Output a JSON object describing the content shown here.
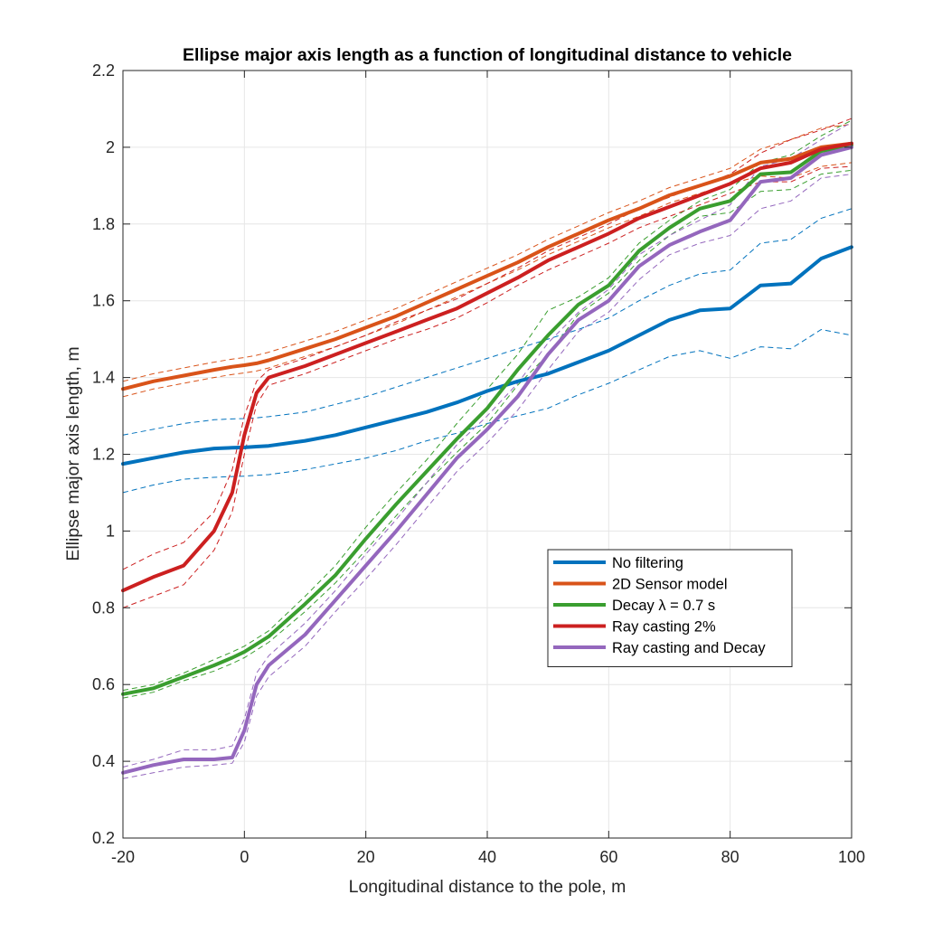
{
  "chart_data": {
    "type": "line",
    "title": "Ellipse major axis length as a function of longitudinal distance to vehicle",
    "xlabel": "Longitudinal distance to the pole, m",
    "ylabel": "Ellipse major axis length, m",
    "xlim": [
      -20,
      100
    ],
    "ylim": [
      0.2,
      2.2
    ],
    "xticks": [
      -20,
      0,
      20,
      40,
      60,
      80,
      100
    ],
    "yticks": [
      0.2,
      0.4,
      0.6,
      0.8,
      1.0,
      1.2,
      1.4,
      1.6,
      1.8,
      2.0,
      2.2
    ],
    "xtick_labels": [
      "-20",
      "0",
      "20",
      "40",
      "60",
      "80",
      "100"
    ],
    "ytick_labels": [
      "0.2",
      "0.4",
      "0.6",
      "0.8",
      "1",
      "1.2",
      "1.4",
      "1.6",
      "1.8",
      "2",
      "2.2"
    ],
    "grid": true,
    "legend_position": "lower-right inside",
    "x": [
      -20,
      -15,
      -10,
      -5,
      -2,
      0,
      2,
      4,
      10,
      15,
      20,
      25,
      30,
      35,
      40,
      45,
      50,
      55,
      60,
      65,
      70,
      75,
      80,
      85,
      90,
      95,
      100
    ],
    "series": [
      {
        "name": "No filtering",
        "color": "#0072BD",
        "values": [
          1.175,
          1.19,
          1.205,
          1.215,
          1.217,
          1.218,
          1.22,
          1.222,
          1.235,
          1.25,
          1.27,
          1.29,
          1.31,
          1.335,
          1.365,
          1.39,
          1.41,
          1.44,
          1.47,
          1.51,
          1.55,
          1.575,
          1.58,
          1.64,
          1.645,
          1.71,
          1.74
        ],
        "upper": [
          1.25,
          1.265,
          1.28,
          1.29,
          1.292,
          1.293,
          1.295,
          1.298,
          1.31,
          1.33,
          1.35,
          1.375,
          1.4,
          1.425,
          1.45,
          1.475,
          1.5,
          1.525,
          1.555,
          1.6,
          1.64,
          1.67,
          1.68,
          1.75,
          1.76,
          1.815,
          1.84
        ],
        "lower": [
          1.1,
          1.12,
          1.135,
          1.14,
          1.142,
          1.143,
          1.145,
          1.147,
          1.16,
          1.175,
          1.19,
          1.21,
          1.235,
          1.255,
          1.28,
          1.3,
          1.32,
          1.355,
          1.385,
          1.42,
          1.455,
          1.47,
          1.45,
          1.48,
          1.475,
          1.525,
          1.51
        ]
      },
      {
        "name": "2D Sensor model",
        "color": "#D95319",
        "values": [
          1.37,
          1.39,
          1.405,
          1.42,
          1.428,
          1.432,
          1.437,
          1.445,
          1.475,
          1.5,
          1.53,
          1.56,
          1.595,
          1.63,
          1.665,
          1.7,
          1.74,
          1.775,
          1.81,
          1.84,
          1.875,
          1.9,
          1.925,
          1.96,
          1.97,
          2.0,
          2.01
        ],
        "upper": [
          1.39,
          1.41,
          1.425,
          1.44,
          1.448,
          1.452,
          1.458,
          1.466,
          1.495,
          1.52,
          1.55,
          1.58,
          1.615,
          1.65,
          1.685,
          1.72,
          1.76,
          1.795,
          1.83,
          1.86,
          1.895,
          1.92,
          1.945,
          1.995,
          2.02,
          2.05,
          2.06
        ],
        "lower": [
          1.35,
          1.37,
          1.385,
          1.4,
          1.408,
          1.412,
          1.417,
          1.425,
          1.455,
          1.48,
          1.51,
          1.54,
          1.575,
          1.61,
          1.645,
          1.68,
          1.72,
          1.755,
          1.79,
          1.82,
          1.855,
          1.88,
          1.905,
          1.925,
          1.92,
          1.95,
          1.96
        ]
      },
      {
        "name": "Decay λ = 0.7 s",
        "color": "#3A9E2F",
        "values": [
          0.575,
          0.59,
          0.62,
          0.65,
          0.67,
          0.685,
          0.705,
          0.725,
          0.81,
          0.885,
          0.98,
          1.07,
          1.155,
          1.24,
          1.32,
          1.42,
          1.51,
          1.59,
          1.64,
          1.73,
          1.79,
          1.84,
          1.86,
          1.93,
          1.935,
          1.99,
          2.005
        ],
        "upper": [
          0.585,
          0.6,
          0.63,
          0.665,
          0.685,
          0.7,
          0.72,
          0.74,
          0.83,
          0.91,
          1.01,
          1.1,
          1.185,
          1.28,
          1.37,
          1.46,
          1.575,
          1.61,
          1.66,
          1.75,
          1.81,
          1.86,
          1.89,
          1.96,
          1.98,
          2.03,
          2.07
        ],
        "lower": [
          0.565,
          0.58,
          0.61,
          0.635,
          0.655,
          0.67,
          0.69,
          0.71,
          0.79,
          0.865,
          0.95,
          1.04,
          1.125,
          1.205,
          1.28,
          1.38,
          1.46,
          1.565,
          1.62,
          1.705,
          1.77,
          1.82,
          1.83,
          1.885,
          1.89,
          1.93,
          1.94
        ]
      },
      {
        "name": "Ray casting 2%",
        "color": "#CC2020",
        "values": [
          0.845,
          0.88,
          0.91,
          1.0,
          1.1,
          1.25,
          1.36,
          1.4,
          1.43,
          1.46,
          1.49,
          1.52,
          1.55,
          1.58,
          1.62,
          1.66,
          1.705,
          1.74,
          1.775,
          1.815,
          1.845,
          1.875,
          1.905,
          1.945,
          1.96,
          1.995,
          2.01
        ],
        "upper": [
          0.9,
          0.94,
          0.97,
          1.05,
          1.16,
          1.3,
          1.39,
          1.42,
          1.45,
          1.48,
          1.51,
          1.545,
          1.575,
          1.605,
          1.645,
          1.685,
          1.73,
          1.765,
          1.8,
          1.84,
          1.87,
          1.9,
          1.93,
          1.985,
          2.02,
          2.045,
          2.075
        ],
        "lower": [
          0.8,
          0.83,
          0.86,
          0.95,
          1.05,
          1.2,
          1.33,
          1.38,
          1.41,
          1.44,
          1.47,
          1.5,
          1.525,
          1.555,
          1.595,
          1.64,
          1.68,
          1.715,
          1.75,
          1.79,
          1.82,
          1.85,
          1.88,
          1.91,
          1.91,
          1.945,
          1.95
        ]
      },
      {
        "name": "Ray casting and Decay",
        "color": "#9467BD",
        "values": [
          0.37,
          0.39,
          0.405,
          0.405,
          0.41,
          0.48,
          0.6,
          0.65,
          0.73,
          0.82,
          0.91,
          1.0,
          1.095,
          1.19,
          1.265,
          1.35,
          1.46,
          1.55,
          1.6,
          1.69,
          1.745,
          1.78,
          1.81,
          1.91,
          1.92,
          1.98,
          2.0
        ],
        "upper": [
          0.385,
          0.405,
          0.43,
          0.43,
          0.44,
          0.51,
          0.63,
          0.675,
          0.76,
          0.845,
          0.94,
          1.03,
          1.125,
          1.225,
          1.3,
          1.385,
          1.49,
          1.57,
          1.63,
          1.72,
          1.77,
          1.81,
          1.85,
          1.95,
          1.97,
          2.02,
          2.065
        ],
        "lower": [
          0.355,
          0.37,
          0.385,
          0.39,
          0.395,
          0.45,
          0.57,
          0.62,
          0.7,
          0.79,
          0.875,
          0.965,
          1.06,
          1.155,
          1.23,
          1.315,
          1.42,
          1.52,
          1.57,
          1.655,
          1.72,
          1.75,
          1.77,
          1.84,
          1.86,
          1.92,
          1.93
        ]
      }
    ]
  }
}
